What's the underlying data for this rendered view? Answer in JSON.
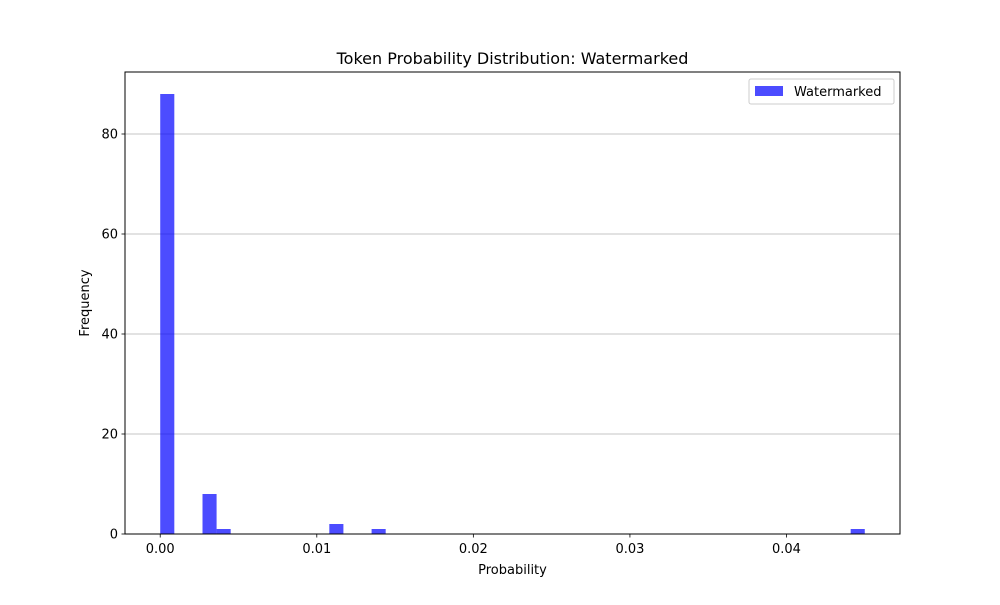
{
  "chart_data": {
    "type": "bar",
    "title": "Token Probability Distribution: Watermarked",
    "xlabel": "Probability",
    "ylabel": "Frequency",
    "xlim": [
      -0.00225,
      0.04725
    ],
    "ylim": [
      0,
      92.4
    ],
    "bin_width": 0.0009,
    "grid": "y-major",
    "legend": {
      "placement": "top-right"
    },
    "x_ticks": [
      {
        "value": 0.0,
        "label": "0.00"
      },
      {
        "value": 0.01,
        "label": "0.01"
      },
      {
        "value": 0.02,
        "label": "0.02"
      },
      {
        "value": 0.03,
        "label": "0.03"
      },
      {
        "value": 0.04,
        "label": "0.04"
      }
    ],
    "y_ticks": [
      {
        "value": 0,
        "label": "0"
      },
      {
        "value": 20,
        "label": "20"
      },
      {
        "value": 40,
        "label": "40"
      },
      {
        "value": 60,
        "label": "60"
      },
      {
        "value": 80,
        "label": "80"
      }
    ],
    "series": [
      {
        "name": "Watermarked",
        "color": "#0000ff",
        "opacity": 0.7,
        "bins": [
          {
            "x0": 0.0,
            "x1": 0.0009,
            "count": 88
          },
          {
            "x0": 0.0027,
            "x1": 0.0036,
            "count": 8
          },
          {
            "x0": 0.0036,
            "x1": 0.0045,
            "count": 1
          },
          {
            "x0": 0.0108,
            "x1": 0.0117,
            "count": 2
          },
          {
            "x0": 0.0135,
            "x1": 0.0144,
            "count": 1
          },
          {
            "x0": 0.0441,
            "x1": 0.045,
            "count": 1
          }
        ]
      }
    ]
  }
}
